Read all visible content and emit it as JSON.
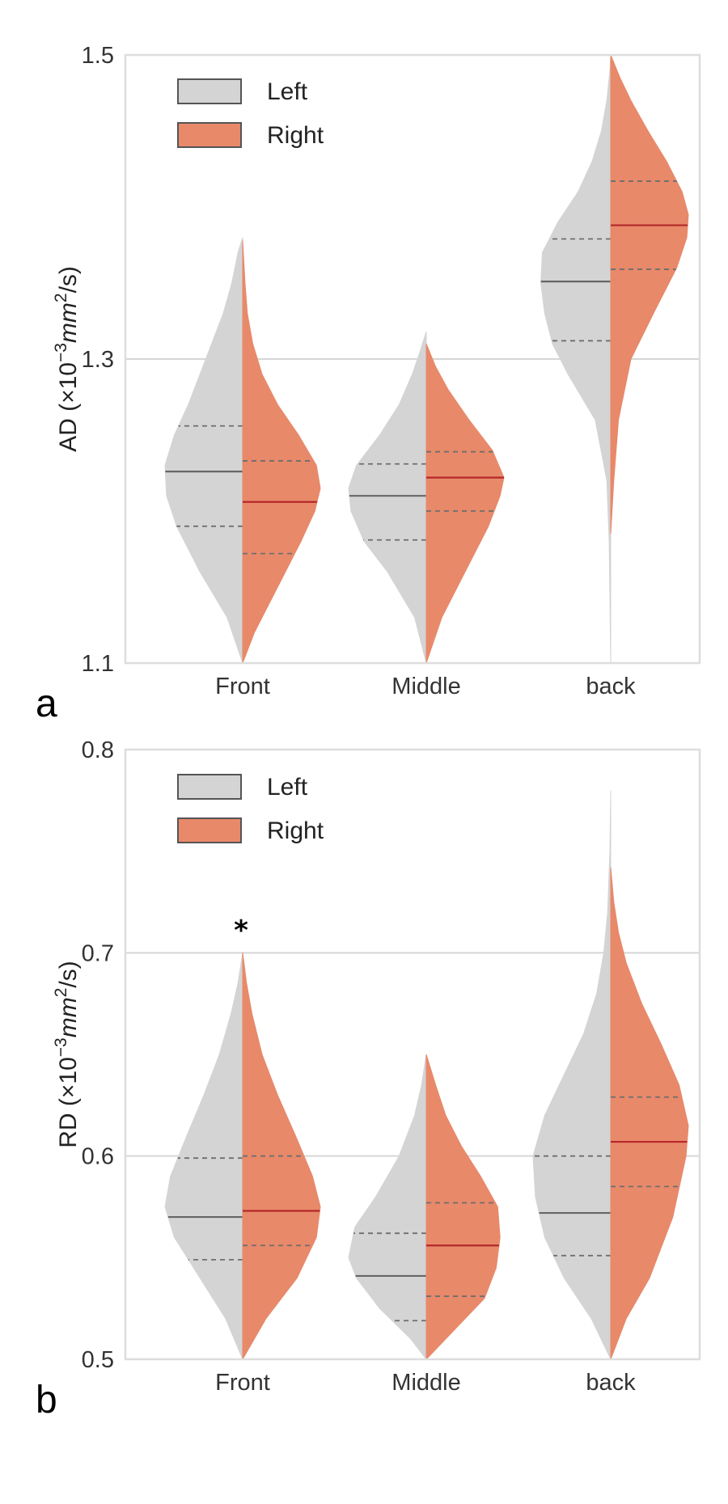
{
  "colors": {
    "left": "#d4d4d4",
    "right": "#e8896a",
    "left_median": "#666666",
    "right_median": "#b5282b",
    "quartile": "#6e6e6e",
    "grid": "#d6d6d6",
    "frame": "#dddddd"
  },
  "legend": {
    "left": "Left",
    "right": "Right"
  },
  "chart_data": [
    {
      "type": "violin",
      "panel_label": "a",
      "ylabel_main": "AD (×10",
      "ylabel_exp": "−3",
      "ylabel_unit_base": "mm",
      "ylabel_unit_exp": "2",
      "ylabel_unit_rest": "/s)",
      "categories": [
        "Front",
        "Middle",
        "back"
      ],
      "ylim": [
        1.1,
        1.5
      ],
      "yticks": [
        1.1,
        1.3,
        1.5
      ],
      "ytick_labels": [
        "1.1",
        "1.3",
        "1.5"
      ],
      "series": [
        {
          "name": "Left",
          "groups": [
            {
              "min": 1.1,
              "max": 1.38,
              "q1": 1.19,
              "median": 1.226,
              "q3": 1.256,
              "profile": [
                [
                  1.1,
                  0.0
                ],
                [
                  1.13,
                  0.2
                ],
                [
                  1.16,
                  0.55
                ],
                [
                  1.19,
                  0.85
                ],
                [
                  1.21,
                  0.98
                ],
                [
                  1.23,
                  1.0
                ],
                [
                  1.25,
                  0.88
                ],
                [
                  1.27,
                  0.7
                ],
                [
                  1.29,
                  0.55
                ],
                [
                  1.31,
                  0.4
                ],
                [
                  1.33,
                  0.25
                ],
                [
                  1.35,
                  0.14
                ],
                [
                  1.37,
                  0.06
                ],
                [
                  1.38,
                  0.0
                ]
              ]
            },
            {
              "min": 1.1,
              "max": 1.318,
              "q1": 1.181,
              "median": 1.21,
              "q3": 1.231,
              "profile": [
                [
                  1.1,
                  0.0
                ],
                [
                  1.13,
                  0.15
                ],
                [
                  1.16,
                  0.5
                ],
                [
                  1.18,
                  0.8
                ],
                [
                  1.2,
                  0.97
                ],
                [
                  1.215,
                  1.0
                ],
                [
                  1.23,
                  0.9
                ],
                [
                  1.25,
                  0.6
                ],
                [
                  1.27,
                  0.35
                ],
                [
                  1.29,
                  0.18
                ],
                [
                  1.305,
                  0.08
                ],
                [
                  1.318,
                  0.0
                ]
              ]
            },
            {
              "min": 1.1,
              "max": 1.5,
              "q1": 1.312,
              "median": 1.351,
              "q3": 1.379,
              "profile": [
                [
                  1.1,
                  0.0
                ],
                [
                  1.18,
                  0.02
                ],
                [
                  1.22,
                  0.05
                ],
                [
                  1.26,
                  0.2
                ],
                [
                  1.29,
                  0.55
                ],
                [
                  1.31,
                  0.75
                ],
                [
                  1.33,
                  0.85
                ],
                [
                  1.35,
                  0.9
                ],
                [
                  1.37,
                  0.88
                ],
                [
                  1.39,
                  0.68
                ],
                [
                  1.41,
                  0.42
                ],
                [
                  1.43,
                  0.24
                ],
                [
                  1.45,
                  0.12
                ],
                [
                  1.47,
                  0.05
                ],
                [
                  1.49,
                  0.01
                ],
                [
                  1.5,
                  0.0
                ]
              ]
            }
          ]
        },
        {
          "name": "Right",
          "groups": [
            {
              "min": 1.1,
              "max": 1.378,
              "q1": 1.172,
              "median": 1.206,
              "q3": 1.233,
              "profile": [
                [
                  1.1,
                  0.0
                ],
                [
                  1.12,
                  0.15
                ],
                [
                  1.15,
                  0.45
                ],
                [
                  1.18,
                  0.75
                ],
                [
                  1.2,
                  0.93
                ],
                [
                  1.215,
                  1.0
                ],
                [
                  1.23,
                  0.95
                ],
                [
                  1.25,
                  0.72
                ],
                [
                  1.27,
                  0.45
                ],
                [
                  1.29,
                  0.25
                ],
                [
                  1.31,
                  0.13
                ],
                [
                  1.33,
                  0.06
                ],
                [
                  1.35,
                  0.03
                ],
                [
                  1.378,
                  0.0
                ]
              ]
            },
            {
              "min": 1.1,
              "max": 1.31,
              "q1": 1.2,
              "median": 1.222,
              "q3": 1.239,
              "profile": [
                [
                  1.1,
                  0.0
                ],
                [
                  1.13,
                  0.2
                ],
                [
                  1.16,
                  0.5
                ],
                [
                  1.19,
                  0.8
                ],
                [
                  1.21,
                  0.95
                ],
                [
                  1.222,
                  1.0
                ],
                [
                  1.24,
                  0.85
                ],
                [
                  1.26,
                  0.55
                ],
                [
                  1.28,
                  0.28
                ],
                [
                  1.295,
                  0.12
                ],
                [
                  1.31,
                  0.0
                ]
              ]
            },
            {
              "min": 1.185,
              "max": 1.5,
              "q1": 1.359,
              "median": 1.388,
              "q3": 1.417,
              "profile": [
                [
                  1.185,
                  0.0
                ],
                [
                  1.22,
                  0.04
                ],
                [
                  1.26,
                  0.1
                ],
                [
                  1.3,
                  0.26
                ],
                [
                  1.33,
                  0.55
                ],
                [
                  1.36,
                  0.85
                ],
                [
                  1.38,
                  0.98
                ],
                [
                  1.395,
                  1.0
                ],
                [
                  1.41,
                  0.92
                ],
                [
                  1.43,
                  0.72
                ],
                [
                  1.45,
                  0.48
                ],
                [
                  1.47,
                  0.26
                ],
                [
                  1.485,
                  0.12
                ],
                [
                  1.5,
                  0.0
                ]
              ]
            }
          ]
        }
      ]
    },
    {
      "type": "violin",
      "panel_label": "b",
      "ylabel_main": "RD (×10",
      "ylabel_exp": "−3",
      "ylabel_unit_base": "mm",
      "ylabel_unit_exp": "2",
      "ylabel_unit_rest": "/s)",
      "categories": [
        "Front",
        "Middle",
        "back"
      ],
      "ylim": [
        0.5,
        0.8
      ],
      "yticks": [
        0.5,
        0.6,
        0.7,
        0.8
      ],
      "ytick_labels": [
        "0.5",
        "0.6",
        "0.7",
        "0.8"
      ],
      "annotation": {
        "text": "*",
        "category": "Front",
        "y": 0.712
      },
      "series": [
        {
          "name": "Left",
          "groups": [
            {
              "min": 0.5,
              "max": 0.7,
              "q1": 0.549,
              "median": 0.57,
              "q3": 0.599,
              "profile": [
                [
                  0.5,
                  0.0
                ],
                [
                  0.52,
                  0.22
                ],
                [
                  0.54,
                  0.55
                ],
                [
                  0.56,
                  0.88
                ],
                [
                  0.575,
                  1.0
                ],
                [
                  0.59,
                  0.93
                ],
                [
                  0.61,
                  0.72
                ],
                [
                  0.63,
                  0.5
                ],
                [
                  0.65,
                  0.3
                ],
                [
                  0.67,
                  0.15
                ],
                [
                  0.685,
                  0.06
                ],
                [
                  0.7,
                  0.0
                ]
              ]
            },
            {
              "min": 0.5,
              "max": 0.65,
              "q1": 0.519,
              "median": 0.541,
              "q3": 0.562,
              "profile": [
                [
                  0.5,
                  0.0
                ],
                [
                  0.51,
                  0.2
                ],
                [
                  0.525,
                  0.6
                ],
                [
                  0.54,
                  0.9
                ],
                [
                  0.55,
                  1.0
                ],
                [
                  0.565,
                  0.92
                ],
                [
                  0.58,
                  0.65
                ],
                [
                  0.6,
                  0.35
                ],
                [
                  0.62,
                  0.15
                ],
                [
                  0.635,
                  0.06
                ],
                [
                  0.65,
                  0.0
                ]
              ]
            },
            {
              "min": 0.5,
              "max": 0.78,
              "q1": 0.551,
              "median": 0.572,
              "q3": 0.6,
              "profile": [
                [
                  0.5,
                  0.0
                ],
                [
                  0.52,
                  0.25
                ],
                [
                  0.54,
                  0.6
                ],
                [
                  0.56,
                  0.85
                ],
                [
                  0.58,
                  0.97
                ],
                [
                  0.6,
                  1.0
                ],
                [
                  0.62,
                  0.85
                ],
                [
                  0.64,
                  0.6
                ],
                [
                  0.66,
                  0.35
                ],
                [
                  0.68,
                  0.18
                ],
                [
                  0.7,
                  0.09
                ],
                [
                  0.72,
                  0.04
                ],
                [
                  0.75,
                  0.01
                ],
                [
                  0.78,
                  0.0
                ]
              ]
            }
          ]
        },
        {
          "name": "Right",
          "groups": [
            {
              "min": 0.5,
              "max": 0.7,
              "q1": 0.556,
              "median": 0.573,
              "q3": 0.6,
              "profile": [
                [
                  0.5,
                  0.0
                ],
                [
                  0.52,
                  0.3
                ],
                [
                  0.54,
                  0.7
                ],
                [
                  0.56,
                  0.95
                ],
                [
                  0.575,
                  1.0
                ],
                [
                  0.59,
                  0.9
                ],
                [
                  0.61,
                  0.68
                ],
                [
                  0.63,
                  0.45
                ],
                [
                  0.65,
                  0.25
                ],
                [
                  0.67,
                  0.12
                ],
                [
                  0.685,
                  0.05
                ],
                [
                  0.7,
                  0.0
                ]
              ]
            },
            {
              "min": 0.5,
              "max": 0.65,
              "q1": 0.531,
              "median": 0.556,
              "q3": 0.577,
              "profile": [
                [
                  0.5,
                  0.0
                ],
                [
                  0.51,
                  0.25
                ],
                [
                  0.53,
                  0.75
                ],
                [
                  0.545,
                  0.9
                ],
                [
                  0.56,
                  0.95
                ],
                [
                  0.575,
                  0.92
                ],
                [
                  0.59,
                  0.7
                ],
                [
                  0.605,
                  0.45
                ],
                [
                  0.62,
                  0.25
                ],
                [
                  0.635,
                  0.12
                ],
                [
                  0.65,
                  0.0
                ]
              ]
            },
            {
              "min": 0.5,
              "max": 0.742,
              "q1": 0.585,
              "median": 0.607,
              "q3": 0.629,
              "profile": [
                [
                  0.5,
                  0.0
                ],
                [
                  0.52,
                  0.2
                ],
                [
                  0.54,
                  0.5
                ],
                [
                  0.57,
                  0.8
                ],
                [
                  0.6,
                  0.97
                ],
                [
                  0.615,
                  1.0
                ],
                [
                  0.635,
                  0.88
                ],
                [
                  0.655,
                  0.65
                ],
                [
                  0.675,
                  0.4
                ],
                [
                  0.695,
                  0.2
                ],
                [
                  0.71,
                  0.1
                ],
                [
                  0.725,
                  0.04
                ],
                [
                  0.742,
                  0.0
                ]
              ]
            }
          ]
        }
      ]
    }
  ]
}
